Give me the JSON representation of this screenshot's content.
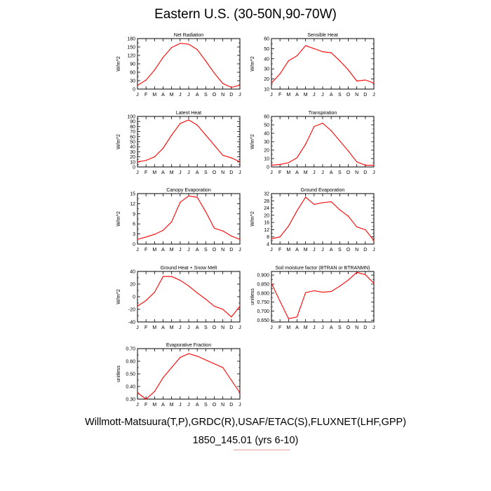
{
  "title": "Eastern U.S. (30-50N,90-70W)",
  "footer": {
    "line1": "Willmott-Matsuura(T,P),GRDC(R),USAF/ETAC(S),FLUXNET(LHF,GPP)",
    "line2": "1850_145.01 (yrs 6-10)"
  },
  "colors": {
    "series": "#ff0000",
    "axis": "#000000",
    "underline": "#e8a0a0"
  },
  "chart_data": [
    {
      "type": "line",
      "title": "Net Radiation",
      "xlabel": "",
      "ylabel": "W/m^2",
      "categories": [
        "J",
        "F",
        "M",
        "A",
        "M",
        "J",
        "J",
        "A",
        "S",
        "O",
        "N",
        "D",
        "J"
      ],
      "ylim": [
        0,
        180
      ],
      "yticks": [
        0,
        30,
        60,
        90,
        120,
        150,
        180
      ],
      "ytick_labels": [
        "0",
        "30",
        "60",
        "90",
        "120",
        "150",
        "180"
      ],
      "values": [
        13,
        32,
        68,
        113,
        148,
        163,
        160,
        141,
        100,
        57,
        20,
        6,
        14
      ]
    },
    {
      "type": "line",
      "title": "Sensible Heat",
      "xlabel": "",
      "ylabel": "W/m^2",
      "categories": [
        "J",
        "F",
        "M",
        "A",
        "M",
        "J",
        "J",
        "A",
        "S",
        "O",
        "N",
        "D",
        "J"
      ],
      "ylim": [
        10,
        60
      ],
      "yticks": [
        10,
        20,
        30,
        40,
        50,
        60
      ],
      "ytick_labels": [
        "10",
        "20",
        "30",
        "40",
        "50",
        "60"
      ],
      "values": [
        16,
        25,
        38,
        43,
        53,
        50,
        47,
        46,
        38,
        29,
        18,
        19,
        16
      ]
    },
    {
      "type": "line",
      "title": "Latent Heat",
      "xlabel": "",
      "ylabel": "W/m^2",
      "categories": [
        "J",
        "F",
        "M",
        "A",
        "M",
        "J",
        "J",
        "A",
        "S",
        "O",
        "N",
        "D",
        "J"
      ],
      "ylim": [
        0,
        100
      ],
      "yticks": [
        0,
        10,
        20,
        30,
        40,
        50,
        60,
        70,
        80,
        90,
        100
      ],
      "ytick_labels": [
        "0",
        "10",
        "20",
        "30",
        "40",
        "50",
        "60",
        "70",
        "80",
        "90",
        "100"
      ],
      "values": [
        10,
        13,
        20,
        37,
        63,
        86,
        93,
        83,
        63,
        43,
        23,
        18,
        10
      ]
    },
    {
      "type": "line",
      "title": "Transpiration",
      "xlabel": "",
      "ylabel": "W/m^2",
      "categories": [
        "J",
        "F",
        "M",
        "A",
        "M",
        "J",
        "J",
        "A",
        "S",
        "O",
        "N",
        "D",
        "J"
      ],
      "ylim": [
        0,
        60
      ],
      "yticks": [
        0,
        10,
        20,
        30,
        40,
        50,
        60
      ],
      "ytick_labels": [
        "0",
        "10",
        "20",
        "30",
        "40",
        "50",
        "60"
      ],
      "values": [
        2,
        3,
        5,
        11,
        27,
        48,
        52,
        43,
        31,
        19,
        6,
        2,
        2
      ]
    },
    {
      "type": "line",
      "title": "Canopy Evaporation",
      "xlabel": "",
      "ylabel": "W/m^2",
      "categories": [
        "J",
        "F",
        "M",
        "A",
        "M",
        "J",
        "J",
        "A",
        "S",
        "O",
        "N",
        "D",
        "J"
      ],
      "ylim": [
        0,
        15
      ],
      "yticks": [
        0,
        3,
        6,
        9,
        12,
        15
      ],
      "ytick_labels": [
        "0",
        "3",
        "6",
        "9",
        "12",
        "15"
      ],
      "values": [
        1.4,
        2.1,
        2.9,
        4.1,
        6.6,
        12.4,
        14.3,
        13.9,
        9.6,
        4.7,
        3.9,
        2.4,
        1.4
      ]
    },
    {
      "type": "line",
      "title": "Ground Evaporation",
      "xlabel": "",
      "ylabel": "W/m^2",
      "categories": [
        "J",
        "F",
        "M",
        "A",
        "M",
        "J",
        "J",
        "A",
        "S",
        "O",
        "N",
        "D",
        "J"
      ],
      "ylim": [
        4,
        32
      ],
      "yticks": [
        4,
        8,
        12,
        16,
        20,
        24,
        28,
        32
      ],
      "ytick_labels": [
        "4",
        "8",
        "12",
        "16",
        "20",
        "24",
        "28",
        "32"
      ],
      "values": [
        7,
        8,
        14,
        22.5,
        30,
        26,
        27,
        27.5,
        23,
        19.5,
        13.5,
        12,
        6
      ]
    },
    {
      "type": "line",
      "title": "Ground Heat + Snow Melt",
      "xlabel": "",
      "ylabel": "W/m^2",
      "categories": [
        "J",
        "F",
        "M",
        "A",
        "M",
        "J",
        "J",
        "A",
        "S",
        "O",
        "N",
        "D",
        "J"
      ],
      "ylim": [
        -40,
        40
      ],
      "yticks": [
        -40,
        -20,
        0,
        20,
        40
      ],
      "ytick_labels": [
        "-40",
        "-20",
        "0",
        "20",
        "40"
      ],
      "values": [
        -15,
        -6,
        7,
        32,
        32,
        26,
        17,
        6,
        -4,
        -15,
        -20,
        -32,
        -15
      ]
    },
    {
      "type": "line",
      "title": "Soil moisture factor (BTRAN or BTRANMN)",
      "xlabel": "",
      "ylabel": "unitless",
      "categories": [
        "J",
        "F",
        "M",
        "A",
        "M",
        "J",
        "J",
        "A",
        "S",
        "O",
        "N",
        "D",
        "J"
      ],
      "ylim": [
        0.64,
        0.92
      ],
      "yticks": [
        0.65,
        0.7,
        0.75,
        0.8,
        0.85,
        0.9
      ],
      "ytick_labels": [
        "0.650",
        "0.700",
        "0.750",
        "0.800",
        "0.850",
        "0.900"
      ],
      "values": [
        0.855,
        0.755,
        0.658,
        0.668,
        0.803,
        0.813,
        0.805,
        0.809,
        0.838,
        0.872,
        0.915,
        0.902,
        0.855
      ]
    },
    {
      "type": "line",
      "title": "Evaporative Fraction",
      "xlabel": "",
      "ylabel": "unitless",
      "categories": [
        "J",
        "F",
        "M",
        "A",
        "M",
        "J",
        "J",
        "A",
        "S",
        "O",
        "N",
        "D",
        "J"
      ],
      "ylim": [
        0.3,
        0.7
      ],
      "yticks": [
        0.3,
        0.4,
        0.5,
        0.6,
        0.7
      ],
      "ytick_labels": [
        "0.30",
        "0.40",
        "0.50",
        "0.60",
        "0.70"
      ],
      "values": [
        0.35,
        0.3,
        0.36,
        0.47,
        0.55,
        0.63,
        0.66,
        0.64,
        0.61,
        0.58,
        0.55,
        0.45,
        0.35
      ]
    }
  ]
}
